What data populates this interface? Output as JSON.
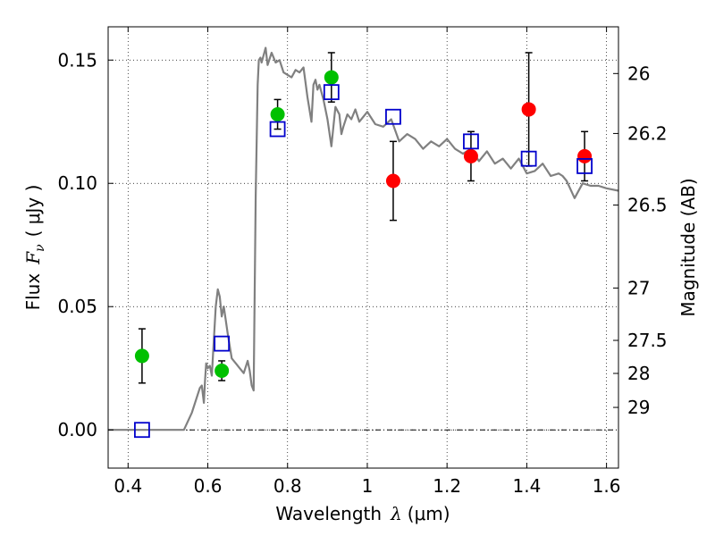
{
  "chart_data": {
    "type": "scatter",
    "xlabel": {
      "text": "Wavelength",
      "symbol": "λ",
      "unit": "(μm)"
    },
    "ylabel": {
      "text": "Flux",
      "symbol": "F",
      "subscript": "ν",
      "unit": "( μJy )"
    },
    "y2label": "Magnitude (AB)",
    "xlim": [
      0.35,
      1.63
    ],
    "ylim": [
      -0.0155,
      0.1635
    ],
    "grid": true,
    "x_ticks": [
      {
        "value": 0.4,
        "label": "0.4"
      },
      {
        "value": 0.6,
        "label": "0.6"
      },
      {
        "value": 0.8,
        "label": "0.8"
      },
      {
        "value": 1.0,
        "label": "1"
      },
      {
        "value": 1.2,
        "label": "1.2"
      },
      {
        "value": 1.4,
        "label": "1.4"
      },
      {
        "value": 1.6,
        "label": "1.6"
      }
    ],
    "y_ticks": [
      {
        "value": 0.0,
        "label": "0.00"
      },
      {
        "value": 0.05,
        "label": "0.05"
      },
      {
        "value": 0.1,
        "label": "0.10"
      },
      {
        "value": 0.15,
        "label": "0.15"
      }
    ],
    "mag_ticks": [
      {
        "mag": 26,
        "label": "26"
      },
      {
        "mag": 26.2,
        "label": "26.2"
      },
      {
        "mag": 26.5,
        "label": "26.5"
      },
      {
        "mag": 27,
        "label": "27"
      },
      {
        "mag": 27.5,
        "label": "27.5"
      },
      {
        "mag": 28,
        "label": "28"
      },
      {
        "mag": 29,
        "label": "29"
      }
    ],
    "model_sed": {
      "color": "#808080",
      "x": [
        0.35,
        0.54,
        0.56,
        0.58,
        0.585,
        0.59,
        0.593,
        0.596,
        0.6,
        0.605,
        0.61,
        0.62,
        0.625,
        0.63,
        0.635,
        0.64,
        0.65,
        0.66,
        0.67,
        0.68,
        0.69,
        0.7,
        0.705,
        0.71,
        0.715,
        0.72,
        0.725,
        0.728,
        0.732,
        0.735,
        0.745,
        0.75,
        0.76,
        0.77,
        0.78,
        0.79,
        0.8,
        0.81,
        0.82,
        0.83,
        0.84,
        0.85,
        0.86,
        0.865,
        0.87,
        0.875,
        0.88,
        0.89,
        0.9,
        0.91,
        0.92,
        0.93,
        0.935,
        0.94,
        0.95,
        0.96,
        0.97,
        0.98,
        1.0,
        1.02,
        1.04,
        1.06,
        1.08,
        1.1,
        1.12,
        1.14,
        1.16,
        1.18,
        1.2,
        1.22,
        1.24,
        1.26,
        1.28,
        1.3,
        1.32,
        1.34,
        1.36,
        1.38,
        1.4,
        1.42,
        1.44,
        1.46,
        1.48,
        1.49,
        1.5,
        1.52,
        1.54,
        1.56,
        1.58,
        1.6,
        1.63
      ],
      "y": [
        0.0,
        0.0,
        0.007,
        0.017,
        0.018,
        0.011,
        0.02,
        0.027,
        0.025,
        0.026,
        0.022,
        0.05,
        0.057,
        0.054,
        0.046,
        0.05,
        0.039,
        0.029,
        0.027,
        0.025,
        0.023,
        0.028,
        0.024,
        0.018,
        0.016,
        0.095,
        0.14,
        0.15,
        0.151,
        0.149,
        0.155,
        0.148,
        0.153,
        0.149,
        0.15,
        0.145,
        0.144,
        0.143,
        0.146,
        0.145,
        0.147,
        0.135,
        0.125,
        0.14,
        0.142,
        0.138,
        0.14,
        0.134,
        0.126,
        0.115,
        0.131,
        0.128,
        0.12,
        0.123,
        0.128,
        0.126,
        0.13,
        0.125,
        0.129,
        0.124,
        0.123,
        0.126,
        0.117,
        0.12,
        0.118,
        0.114,
        0.117,
        0.115,
        0.118,
        0.114,
        0.112,
        0.114,
        0.109,
        0.113,
        0.108,
        0.11,
        0.106,
        0.11,
        0.104,
        0.105,
        0.108,
        0.103,
        0.104,
        0.103,
        0.101,
        0.094,
        0.1,
        0.099,
        0.099,
        0.098,
        0.097
      ]
    },
    "series": [
      {
        "marker": "circle",
        "color": "#00c000",
        "points": [
          {
            "x": 0.435,
            "y": 0.03,
            "err": 0.011
          },
          {
            "x": 0.635,
            "y": 0.024,
            "err": 0.004
          },
          {
            "x": 0.775,
            "y": 0.128,
            "err": 0.006
          },
          {
            "x": 0.91,
            "y": 0.143,
            "err": 0.01
          }
        ]
      },
      {
        "marker": "circle",
        "color": "#ff0000",
        "points": [
          {
            "x": 1.065,
            "y": 0.101,
            "err": 0.016
          },
          {
            "x": 1.26,
            "y": 0.111,
            "err": 0.01
          },
          {
            "x": 1.405,
            "y": 0.13,
            "err": 0.023
          },
          {
            "x": 1.545,
            "y": 0.111,
            "err": 0.01
          }
        ]
      },
      {
        "marker": "square",
        "color": "#0000cc",
        "points": [
          {
            "x": 0.435,
            "y": 0.0
          },
          {
            "x": 0.635,
            "y": 0.035
          },
          {
            "x": 0.775,
            "y": 0.122
          },
          {
            "x": 0.91,
            "y": 0.137
          },
          {
            "x": 1.065,
            "y": 0.127
          },
          {
            "x": 1.26,
            "y": 0.117
          },
          {
            "x": 1.405,
            "y": 0.11
          },
          {
            "x": 1.545,
            "y": 0.107
          }
        ]
      }
    ]
  }
}
